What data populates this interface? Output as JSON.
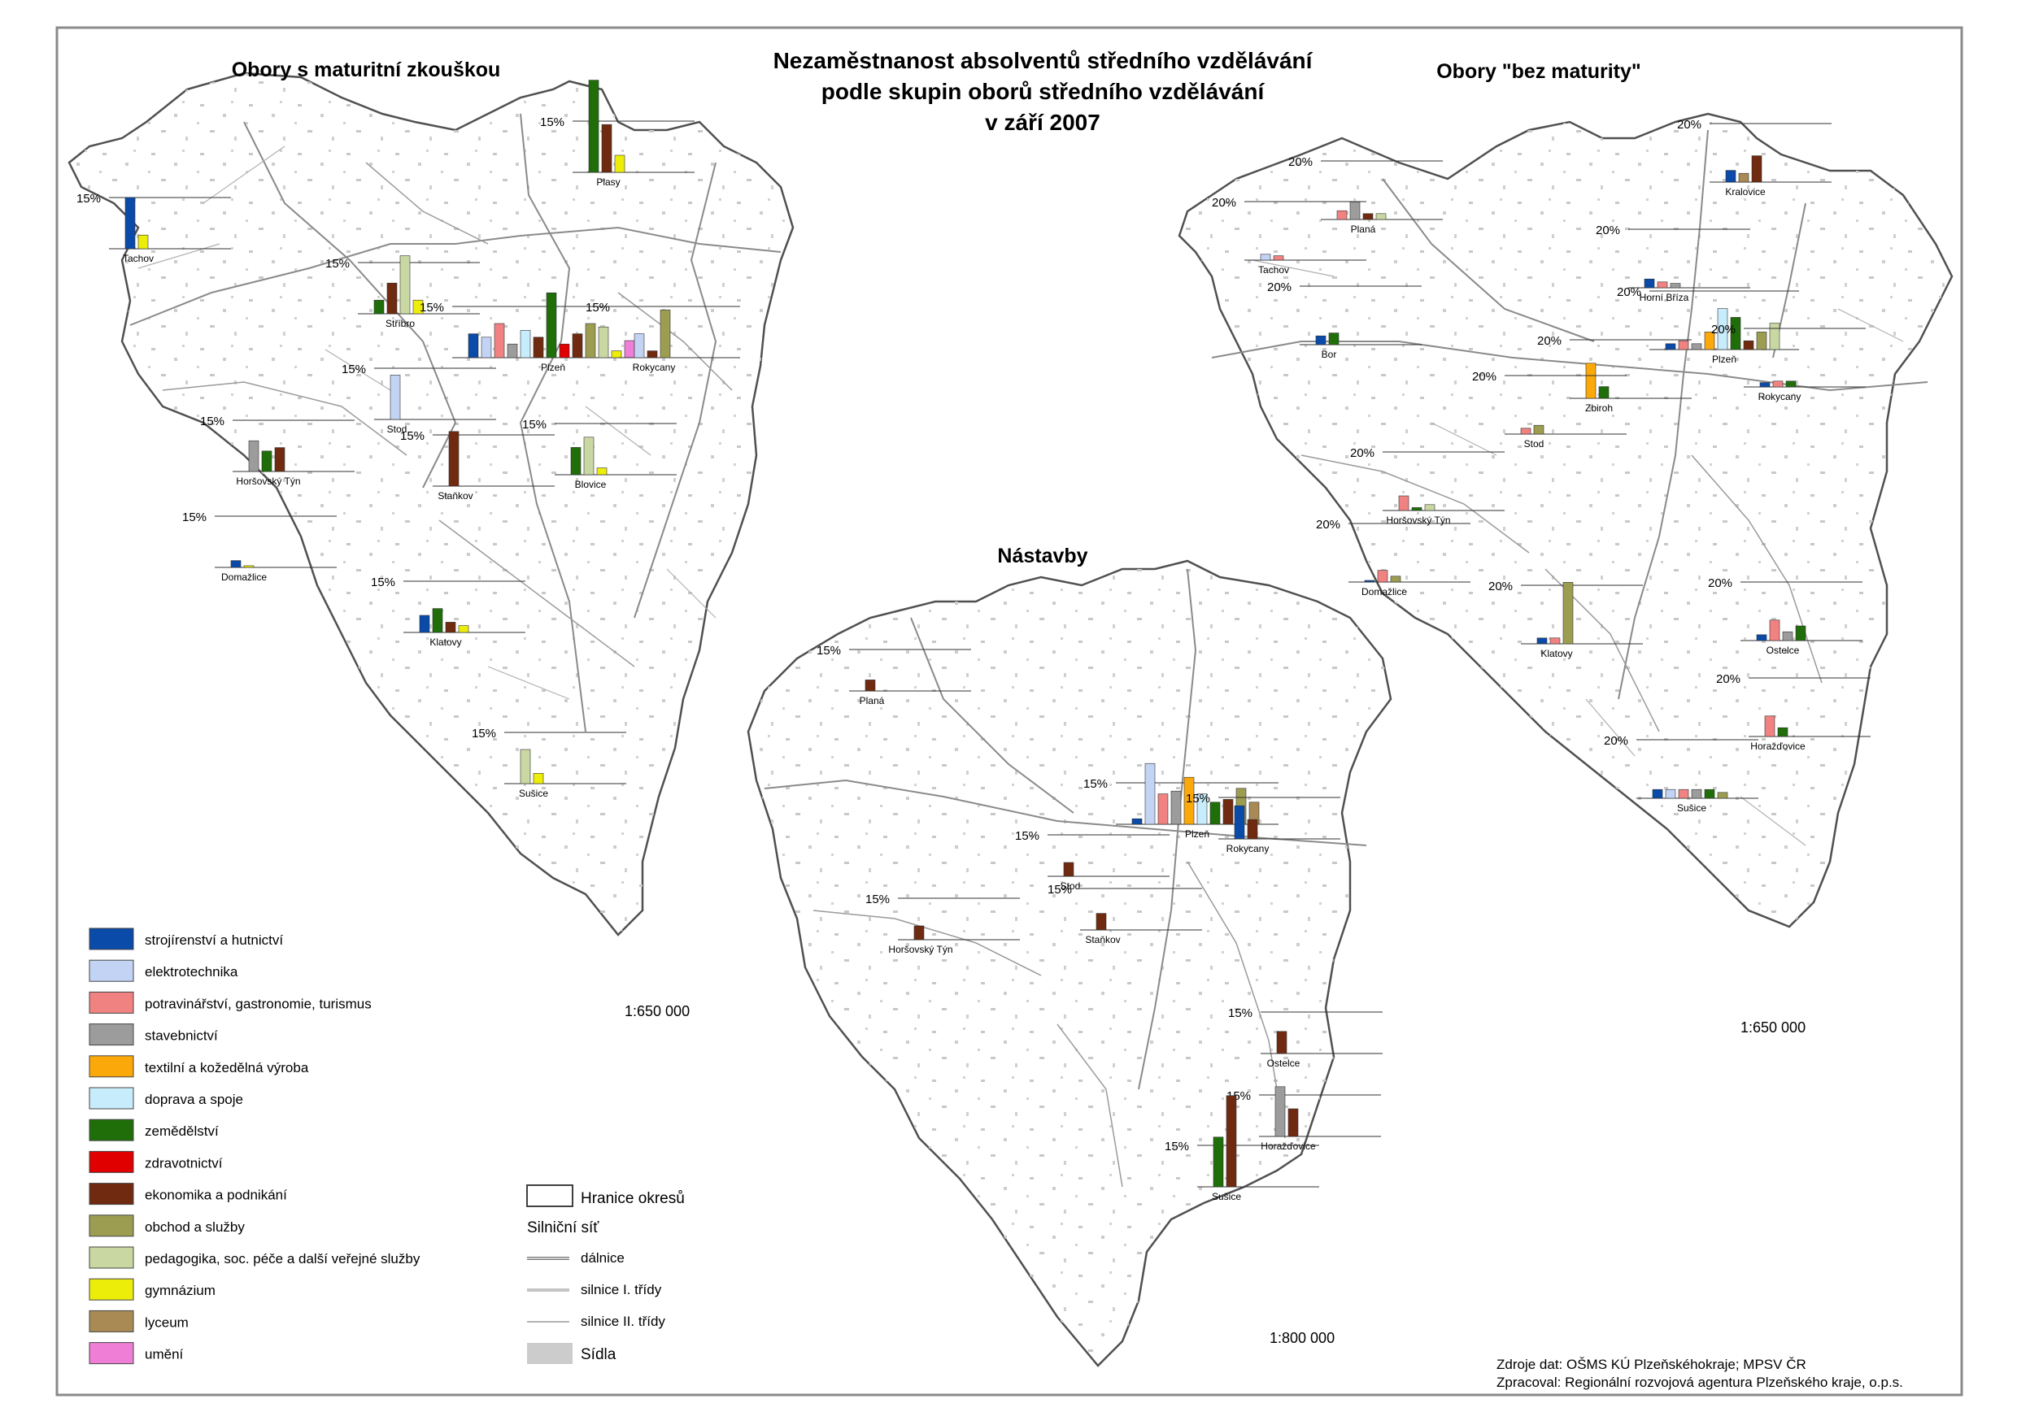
{
  "title": {
    "line1": "Nezaměstnanost absolventů středního vzdělávání",
    "line2": "podle skupin oborů středního vzdělávání",
    "line3": "v září 2007"
  },
  "panels": {
    "maturita": {
      "title": "Obory s maturitní zkouškou",
      "scale": "1:650 000",
      "ref": "15%"
    },
    "bez_maturity": {
      "title": "Obory \"bez maturity\"",
      "scale": "1:650 000",
      "ref": "20%"
    },
    "nastavby": {
      "title": "Nástavby",
      "scale": "1:800 000",
      "ref": "15%"
    }
  },
  "colors": {
    "strojirenstvi": "#0a4aa8",
    "elektrotechnika": "#c2d3f4",
    "potravinarstvi": "#f08282",
    "stavebnictvi": "#9c9c9c",
    "textilni": "#fba90a",
    "doprava": "#c7ecfb",
    "zemedelstvi": "#1f6e0a",
    "zdravotnictvi": "#e00000",
    "ekonomika": "#6f2a0f",
    "obchod": "#9d9d51",
    "pedagogika": "#c9d8a2",
    "gymnazium": "#eded0a",
    "lyceum": "#a98a55",
    "umeni": "#ef7ed6"
  },
  "legend": [
    {
      "key": "strojirenstvi",
      "label": "strojírenství a hutnictví"
    },
    {
      "key": "elektrotechnika",
      "label": "elektrotechnika"
    },
    {
      "key": "potravinarstvi",
      "label": "potravinářství, gastronomie, turismus"
    },
    {
      "key": "stavebnictvi",
      "label": "stavebnictví"
    },
    {
      "key": "textilni",
      "label": "textilní a kožedělná výroba"
    },
    {
      "key": "doprava",
      "label": "doprava a spoje"
    },
    {
      "key": "zemedelstvi",
      "label": "zemědělství"
    },
    {
      "key": "zdravotnictvi",
      "label": "zdravotnictví"
    },
    {
      "key": "ekonomika",
      "label": "ekonomika a podnikání"
    },
    {
      "key": "obchod",
      "label": "obchod a služby"
    },
    {
      "key": "pedagogika",
      "label": "pedagogika, soc. péče a další veřejné služby"
    },
    {
      "key": "gymnazium",
      "label": "gymnázium"
    },
    {
      "key": "lyceum",
      "label": "lyceum"
    },
    {
      "key": "umeni",
      "label": "umění"
    }
  ],
  "map_legend": {
    "hranice": "Hranice okresů",
    "silnicni_sit": "Silniční síť",
    "dalnice": "dálnice",
    "silnice1": "silnice I. třídy",
    "silnice2": "silnice II. třídy",
    "sidla": "Sídla"
  },
  "source": {
    "line1": "Zdroje dat: OŠMS KÚ Plzeňskéhokraje; MPSV ČR",
    "line2": "Zpracoval: Regionální rozvojová agentura Plzeňského kraje, o.p.s."
  },
  "towns": {
    "maturita": [
      {
        "name": "Plasy",
        "values": [
          {
            "key": "zemedelstvi",
            "value": 27
          },
          {
            "key": "ekonomika",
            "value": 14
          },
          {
            "key": "gymnazium",
            "value": 5
          }
        ]
      },
      {
        "name": "Tachov",
        "values": [
          {
            "key": "strojirenstvi",
            "value": 15
          },
          {
            "key": "gymnazium",
            "value": 4
          }
        ]
      },
      {
        "name": "Stříbro",
        "values": [
          {
            "key": "zemedelstvi",
            "value": 4
          },
          {
            "key": "ekonomika",
            "value": 9
          },
          {
            "key": "pedagogika",
            "value": 17
          },
          {
            "key": "gymnazium",
            "value": 4
          }
        ]
      },
      {
        "name": "Plzeň",
        "values": [
          {
            "key": "strojirenstvi",
            "value": 7
          },
          {
            "key": "elektrotechnika",
            "value": 6
          },
          {
            "key": "potravinarstvi",
            "value": 10
          },
          {
            "key": "stavebnictvi",
            "value": 4
          },
          {
            "key": "doprava",
            "value": 8
          },
          {
            "key": "ekonomika",
            "value": 6
          },
          {
            "key": "zemedelstvi",
            "value": 19
          },
          {
            "key": "zdravotnictvi",
            "value": 4
          },
          {
            "key": "ekonomika",
            "value": 7
          },
          {
            "key": "obchod",
            "value": 10
          },
          {
            "key": "pedagogika",
            "value": 9
          },
          {
            "key": "gymnazium",
            "value": 2
          },
          {
            "key": "umeni",
            "value": 5
          }
        ]
      },
      {
        "name": "Rokycany",
        "values": [
          {
            "key": "elektrotechnika",
            "value": 7
          },
          {
            "key": "ekonomika",
            "value": 2
          },
          {
            "key": "obchod",
            "value": 14
          }
        ]
      },
      {
        "name": "Stod",
        "values": [
          {
            "key": "elektrotechnika",
            "value": 13
          }
        ]
      },
      {
        "name": "Staňkov",
        "values": [
          {
            "key": "ekonomika",
            "value": 16
          }
        ]
      },
      {
        "name": "Horšovský Týn",
        "values": [
          {
            "key": "stavebnictvi",
            "value": 9
          },
          {
            "key": "zemedelstvi",
            "value": 6
          },
          {
            "key": "ekonomika",
            "value": 7
          }
        ]
      },
      {
        "name": "Blovice",
        "values": [
          {
            "key": "zemedelstvi",
            "value": 8
          },
          {
            "key": "pedagogika",
            "value": 11
          },
          {
            "key": "gymnazium",
            "value": 2
          }
        ]
      },
      {
        "name": "Domažlice",
        "values": [
          {
            "key": "strojirenstvi",
            "value": 2
          },
          {
            "key": "gymnazium",
            "value": 0.5
          }
        ]
      },
      {
        "name": "Klatovy",
        "values": [
          {
            "key": "strojirenstvi",
            "value": 5
          },
          {
            "key": "zemedelstvi",
            "value": 7
          },
          {
            "key": "ekonomika",
            "value": 3
          },
          {
            "key": "gymnazium",
            "value": 2
          }
        ]
      },
      {
        "name": "Sušice",
        "values": [
          {
            "key": "pedagogika",
            "value": 10
          },
          {
            "key": "gymnazium",
            "value": 3
          }
        ]
      }
    ],
    "bez_maturity": [
      {
        "name": "Kralovice",
        "values": [
          {
            "key": "strojirenstvi",
            "value": 4
          },
          {
            "key": "lyceum",
            "value": 3
          },
          {
            "key": "ekonomika",
            "value": 9
          }
        ]
      },
      {
        "name": "Planá",
        "values": [
          {
            "key": "potravinarstvi",
            "value": 3
          },
          {
            "key": "stavebnictvi",
            "value": 6
          },
          {
            "key": "ekonomika",
            "value": 2
          },
          {
            "key": "pedagogika",
            "value": 2
          }
        ]
      },
      {
        "name": "Tachov",
        "values": [
          {
            "key": "elektrotechnika",
            "value": 2
          },
          {
            "key": "potravinarstvi",
            "value": 1.5
          }
        ]
      },
      {
        "name": "Horní Bříza",
        "values": [
          {
            "key": "strojirenstvi",
            "value": 3
          },
          {
            "key": "potravinarstvi",
            "value": 2
          },
          {
            "key": "stavebnictvi",
            "value": 1.5
          }
        ]
      },
      {
        "name": "Bor",
        "values": [
          {
            "key": "strojirenstvi",
            "value": 3
          },
          {
            "key": "zemedelstvi",
            "value": 4
          }
        ]
      },
      {
        "name": "Plzeň",
        "values": [
          {
            "key": "strojirenstvi",
            "value": 2
          },
          {
            "key": "potravinarstvi",
            "value": 3
          },
          {
            "key": "stavebnictvi",
            "value": 2
          },
          {
            "key": "textilni",
            "value": 6
          },
          {
            "key": "doprava",
            "value": 14
          },
          {
            "key": "zemedelstvi",
            "value": 11
          },
          {
            "key": "ekonomika",
            "value": 3
          },
          {
            "key": "obchod",
            "value": 6
          },
          {
            "key": "pedagogika",
            "value": 9
          }
        ]
      },
      {
        "name": "Zbiroh",
        "values": [
          {
            "key": "textilni",
            "value": 12
          },
          {
            "key": "zemedelstvi",
            "value": 4
          }
        ]
      },
      {
        "name": "Rokycany",
        "values": [
          {
            "key": "strojirenstvi",
            "value": 1.5
          },
          {
            "key": "potravinarstvi",
            "value": 2
          },
          {
            "key": "zemedelstvi",
            "value": 2
          }
        ]
      },
      {
        "name": "Stod",
        "values": [
          {
            "key": "potravinarstvi",
            "value": 2
          },
          {
            "key": "obchod",
            "value": 3
          }
        ]
      },
      {
        "name": "Horšovský Týn",
        "values": [
          {
            "key": "potravinarstvi",
            "value": 5
          },
          {
            "key": "zemedelstvi",
            "value": 1
          },
          {
            "key": "pedagogika",
            "value": 2
          }
        ]
      },
      {
        "name": "Domažlice",
        "values": [
          {
            "key": "strojirenstvi",
            "value": 0.5
          },
          {
            "key": "potravinarstvi",
            "value": 4
          },
          {
            "key": "obchod",
            "value": 2
          }
        ]
      },
      {
        "name": "Klatovy",
        "values": [
          {
            "key": "strojirenstvi",
            "value": 2
          },
          {
            "key": "potravinarstvi",
            "value": 2
          },
          {
            "key": "obchod",
            "value": 21
          }
        ]
      },
      {
        "name": "Ostelce",
        "values": [
          {
            "key": "strojirenstvi",
            "value": 2
          },
          {
            "key": "potravinarstvi",
            "value": 7
          },
          {
            "key": "stavebnictvi",
            "value": 3
          },
          {
            "key": "zemedelstvi",
            "value": 5
          }
        ]
      },
      {
        "name": "Horažďovice",
        "values": [
          {
            "key": "potravinarstvi",
            "value": 7
          },
          {
            "key": "zemedelstvi",
            "value": 3
          }
        ]
      },
      {
        "name": "Sušice",
        "values": [
          {
            "key": "strojirenstvi",
            "value": 3
          },
          {
            "key": "elektrotechnika",
            "value": 3
          },
          {
            "key": "potravinarstvi",
            "value": 3
          },
          {
            "key": "stavebnictvi",
            "value": 3
          },
          {
            "key": "zemedelstvi",
            "value": 3
          },
          {
            "key": "obchod",
            "value": 2
          }
        ]
      }
    ],
    "nastavby": [
      {
        "name": "Planá",
        "values": [
          {
            "key": "ekonomika",
            "value": 4
          }
        ]
      },
      {
        "name": "Plzeň",
        "values": [
          {
            "key": "strojirenstvi",
            "value": 2
          },
          {
            "key": "elektrotechnika",
            "value": 22
          },
          {
            "key": "potravinarstvi",
            "value": 11
          },
          {
            "key": "stavebnictvi",
            "value": 12
          },
          {
            "key": "textilni",
            "value": 17
          },
          {
            "key": "doprava",
            "value": 11
          },
          {
            "key": "zemedelstvi",
            "value": 8
          },
          {
            "key": "ekonomika",
            "value": 9
          },
          {
            "key": "obchod",
            "value": 13
          },
          {
            "key": "lyceum",
            "value": 8
          }
        ]
      },
      {
        "name": "Rokycany",
        "values": [
          {
            "key": "strojirenstvi",
            "value": 12
          },
          {
            "key": "ekonomika",
            "value": 7
          }
        ]
      },
      {
        "name": "Stod",
        "values": [
          {
            "key": "ekonomika",
            "value": 5
          }
        ]
      },
      {
        "name": "Horšovský Týn",
        "values": [
          {
            "key": "ekonomika",
            "value": 5
          }
        ]
      },
      {
        "name": "Staňkov",
        "values": [
          {
            "key": "ekonomika",
            "value": 6
          }
        ]
      },
      {
        "name": "Ostelce",
        "values": [
          {
            "key": "ekonomika",
            "value": 8
          }
        ]
      },
      {
        "name": "Horažďovice",
        "values": [
          {
            "key": "stavebnictvi",
            "value": 18
          },
          {
            "key": "ekonomika",
            "value": 10
          }
        ]
      },
      {
        "name": "Sušice",
        "values": [
          {
            "key": "zemedelstvi",
            "value": 18
          },
          {
            "key": "ekonomika",
            "value": 33
          }
        ]
      }
    ]
  }
}
